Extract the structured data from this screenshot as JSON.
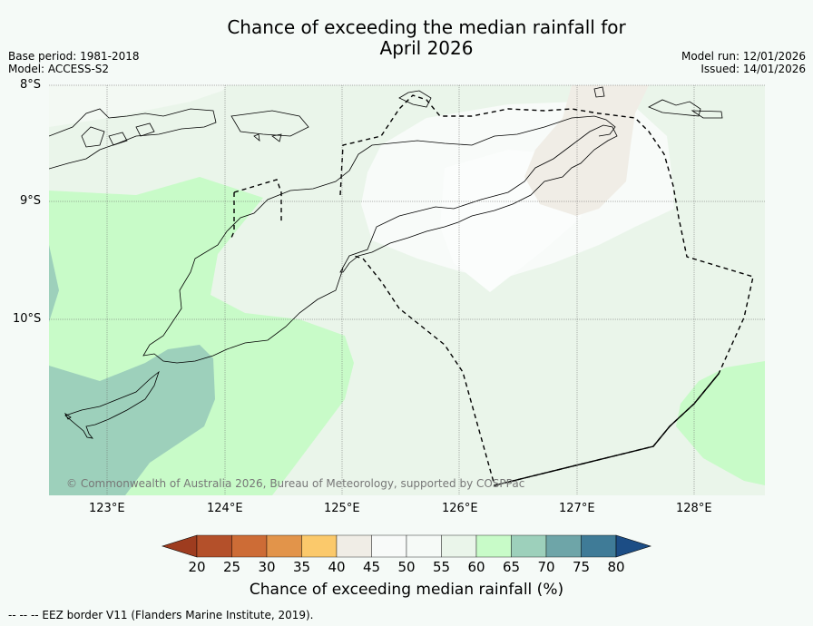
{
  "title_line1": "Chance of exceeding the median rainfall for",
  "title_line2": "April 2026",
  "meta": {
    "base_period": "Base period: 1981-2018",
    "model": "Model: ACCESS-S2",
    "model_run": "Model run: 12/01/2026",
    "issued": "Issued: 14/01/2026"
  },
  "lat_labels": [
    "8°S",
    "9°S",
    "10°S"
  ],
  "lon_labels": [
    "123°E",
    "124°E",
    "125°E",
    "126°E",
    "127°E",
    "128°E"
  ],
  "copyright": "© Commonwealth of Australia 2026, Bureau of Meteorology, supported by COSPPac",
  "colorbar": {
    "ticks": [
      "20",
      "25",
      "30",
      "35",
      "40",
      "45",
      "50",
      "55",
      "60",
      "65",
      "70",
      "75",
      "80"
    ],
    "colors": [
      "#9e3c1f",
      "#b4502a",
      "#cd6c36",
      "#e2944a",
      "#fbc96b",
      "#f0ede6",
      "#f8faf9",
      "#f6faf7",
      "#eaf5ea",
      "#c8fbc8",
      "#9dd0bb",
      "#6ea5a8",
      "#3f7b97",
      "#1c4d85"
    ],
    "label": "Chance of exceeding median rainfall (%)"
  },
  "footnote": "--  --  -- EEZ border V11 (Flanders Marine Institute, 2019)."
}
